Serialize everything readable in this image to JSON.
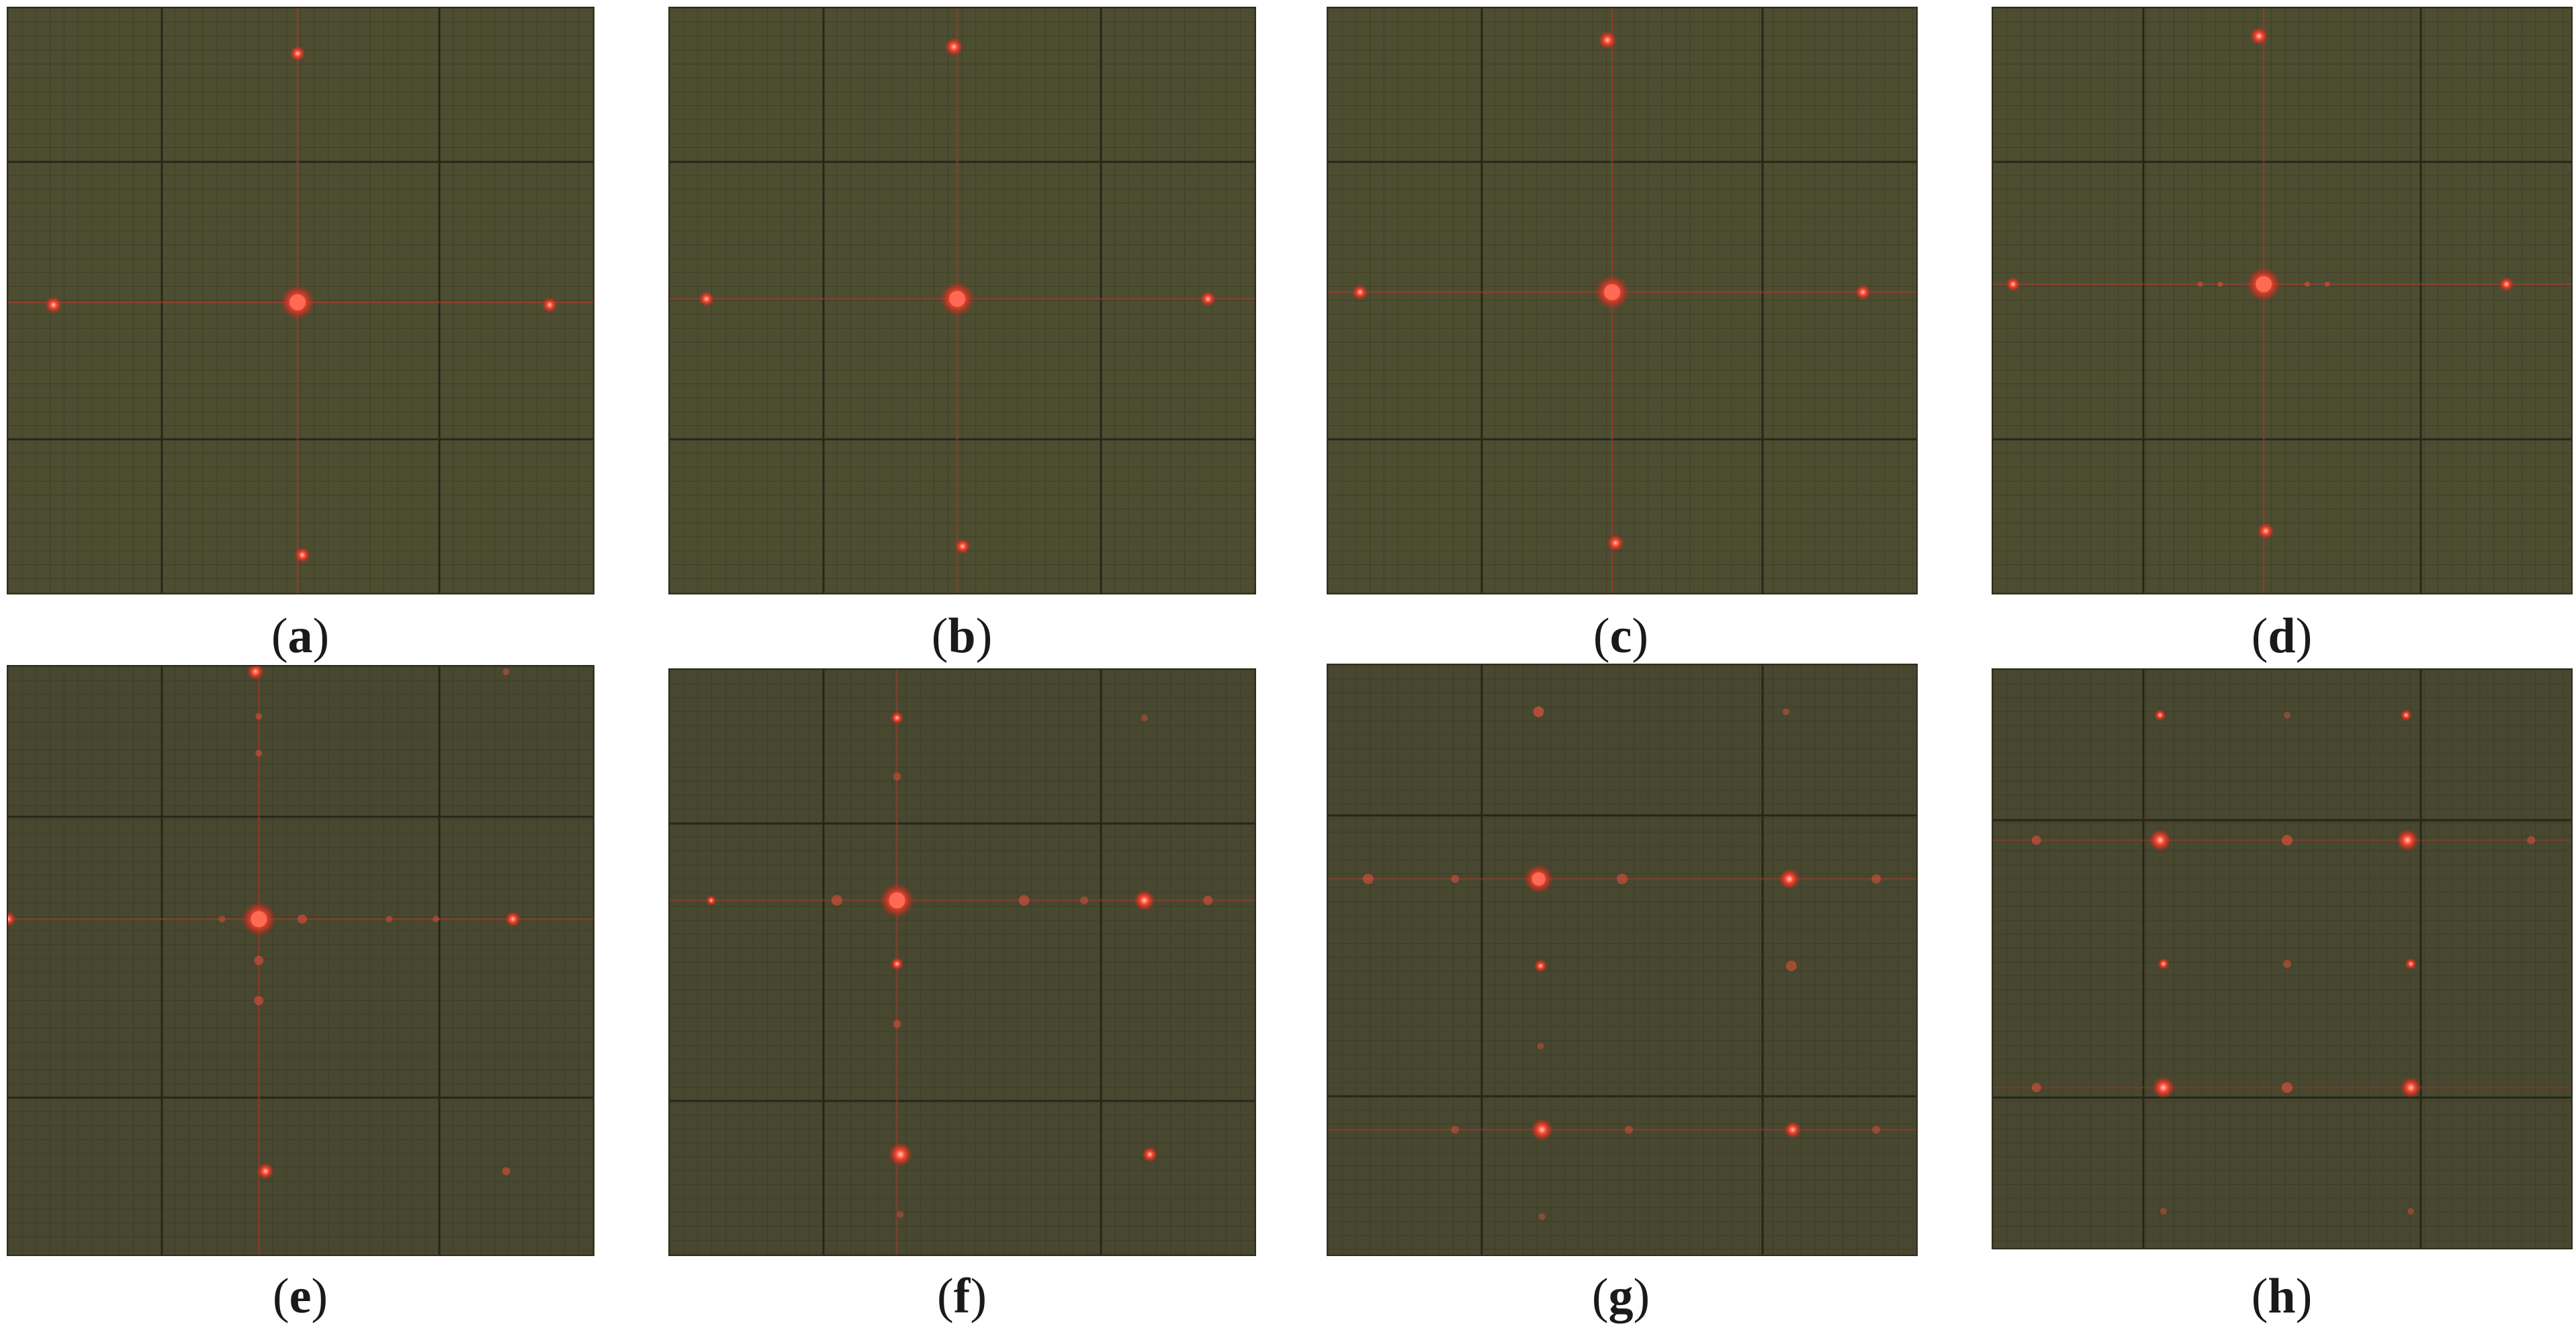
{
  "figure": {
    "panels": [
      {
        "id": "a",
        "caption": "(a)"
      },
      {
        "id": "b",
        "caption": "(b)"
      },
      {
        "id": "c",
        "caption": "(c)"
      },
      {
        "id": "d",
        "caption": "(d)"
      },
      {
        "id": "e",
        "caption": "(e)"
      },
      {
        "id": "f",
        "caption": "(f)"
      },
      {
        "id": "g",
        "caption": "(g)"
      },
      {
        "id": "h",
        "caption": "(h)"
      }
    ],
    "colors": {
      "screen": "#4a4a30",
      "grid_minor": "#3a3a26",
      "grid_major": "#26261a",
      "spot": "#ff4433",
      "spot_glow": "#ff2a1a"
    }
  }
}
